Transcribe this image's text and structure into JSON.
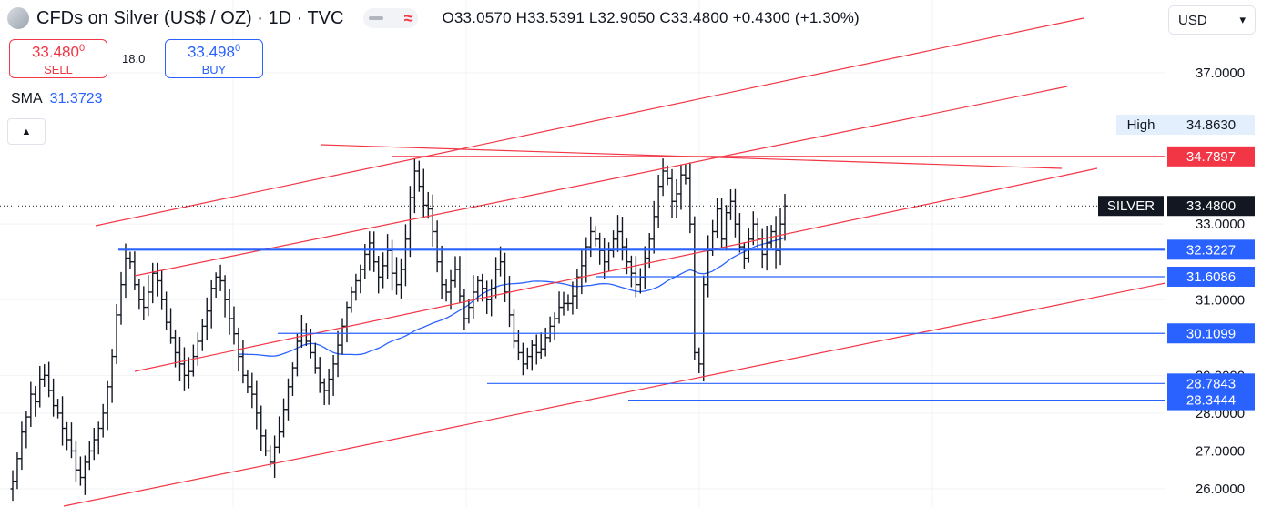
{
  "header": {
    "symbol_title": "CFDs on Silver (US$ / OZ) · 1D · TVC",
    "flag_wave": "≈",
    "ohlc": "O33.0570 H33.5391 L32.9050 C33.4800 +0.4300 (+1.30%)"
  },
  "trade": {
    "sell_price_main": "33.480",
    "sell_price_sup": "0",
    "sell_label": "SELL",
    "spread": "18.0",
    "buy_price_main": "33.498",
    "buy_price_sup": "0",
    "buy_label": "BUY"
  },
  "indicator": {
    "name": "SMA",
    "value": "31.3723"
  },
  "collapse_icon": "▲",
  "currency": {
    "selected": "USD"
  },
  "colors": {
    "bar": "#131722",
    "trendline": "#f23645",
    "hline": "#2962ff",
    "sma": "#2962ff",
    "high_badge_bg": "#e3effd"
  },
  "chart_data": {
    "type": "ohlc",
    "title": "CFDs on Silver (US$ / OZ) · 1D · TVC",
    "currency": "USD",
    "y_axis": {
      "ticks": [
        {
          "value": 37,
          "label": "37.0000"
        },
        {
          "value": 33,
          "label": "33.0000"
        },
        {
          "value": 31,
          "label": "31.0000"
        },
        {
          "value": 29,
          "label": "29.0000"
        },
        {
          "value": 28,
          "label": "28.0000"
        },
        {
          "value": 27,
          "label": "27.0000"
        },
        {
          "value": 26,
          "label": "26.0000"
        }
      ]
    },
    "price_labels": [
      {
        "label": "High",
        "value": "34.8630",
        "type": "high"
      },
      {
        "label": "",
        "value": "34.7897",
        "type": "red"
      },
      {
        "label": "SILVER",
        "value": "33.4800",
        "type": "last"
      },
      {
        "label": "",
        "value": "32.3227",
        "type": "blue"
      },
      {
        "label": "",
        "value": "31.6086",
        "type": "blue"
      },
      {
        "label": "",
        "value": "30.1099",
        "type": "blue"
      },
      {
        "label": "",
        "value": "28.7843",
        "type": "blue"
      },
      {
        "label": "",
        "value": "28.3444",
        "type": "blue"
      }
    ],
    "last_price": 33.48,
    "horizontal_levels": [
      32.3227,
      31.6086,
      30.1099,
      28.7843,
      28.3444,
      34.7897
    ],
    "closes": [
      26.2,
      26.8,
      27.5,
      27.9,
      28.5,
      28.3,
      28.9,
      29.0,
      28.6,
      28.2,
      28.0,
      27.6,
      27.3,
      27.0,
      26.5,
      26.3,
      26.7,
      27.0,
      27.3,
      27.6,
      28.0,
      28.7,
      29.5,
      30.6,
      31.4,
      32.1,
      32.0,
      31.4,
      31.0,
      30.8,
      31.2,
      31.7,
      31.5,
      31.0,
      30.4,
      30.0,
      29.6,
      29.3,
      29.0,
      29.1,
      29.5,
      29.9,
      30.3,
      30.7,
      31.3,
      31.6,
      31.5,
      31.0,
      30.5,
      30.1,
      29.5,
      29.0,
      28.7,
      28.5,
      28.0,
      27.4,
      27.0,
      26.7,
      27.1,
      27.5,
      28.1,
      28.7,
      29.2,
      29.9,
      30.2,
      29.9,
      29.6,
      29.2,
      28.8,
      28.6,
      28.9,
      29.3,
      29.8,
      30.3,
      30.8,
      31.2,
      31.5,
      31.8,
      32.2,
      32.5,
      32.0,
      31.6,
      31.9,
      32.3,
      31.7,
      31.4,
      31.8,
      32.6,
      33.7,
      34.4,
      34.0,
      33.5,
      33.4,
      32.8,
      32.0,
      31.4,
      31.2,
      31.5,
      31.8,
      31.1,
      30.5,
      30.8,
      31.2,
      31.5,
      31.3,
      31.0,
      31.3,
      31.8,
      32.0,
      31.2,
      30.6,
      29.9,
      29.6,
      29.3,
      29.5,
      29.8,
      29.6,
      29.7,
      30.0,
      30.3,
      30.5,
      30.8,
      30.9,
      30.9,
      31.1,
      31.6,
      31.9,
      32.4,
      32.8,
      32.6,
      32.3,
      32.0,
      32.3,
      32.6,
      32.8,
      32.4,
      32.0,
      31.7,
      31.4,
      31.6,
      32.1,
      32.6,
      33.2,
      34.0,
      34.4,
      34.2,
      33.6,
      33.8,
      34.3,
      34.2,
      33.0,
      29.6,
      29.3,
      31.4,
      32.3,
      32.8,
      33.4,
      32.6,
      33.3,
      33.6,
      33.0,
      32.4,
      32.1,
      32.6,
      33.0,
      32.6,
      32.2,
      32.5,
      32.8,
      32.3,
      33.0,
      33.48
    ],
    "sma_series": {
      "name": "SMA",
      "last_value": 31.3723
    }
  }
}
